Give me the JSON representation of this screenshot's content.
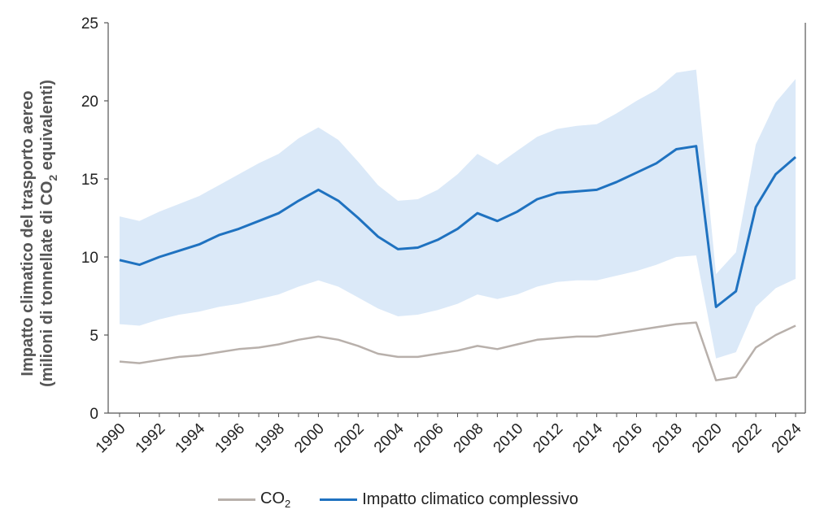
{
  "chart_data": {
    "type": "line",
    "ylabel_line1": "Impatto climatico del trasporto  aereo",
    "ylabel_line2_prefix": "(milioni di tonnellate di CO",
    "ylabel_line2_sub": "2",
    "ylabel_line2_suffix": " equivalenti)",
    "ylim": [
      0,
      25
    ],
    "yticks": [
      0,
      5,
      10,
      15,
      20,
      25
    ],
    "xlim": [
      1990,
      2024
    ],
    "xticks": [
      1990,
      1992,
      1994,
      1996,
      1998,
      2000,
      2002,
      2004,
      2006,
      2008,
      2010,
      2012,
      2014,
      2016,
      2018,
      2020,
      2022,
      2024
    ],
    "x": [
      1990,
      1991,
      1992,
      1993,
      1994,
      1995,
      1996,
      1997,
      1998,
      1999,
      2000,
      2001,
      2002,
      2003,
      2004,
      2005,
      2006,
      2007,
      2008,
      2009,
      2010,
      2011,
      2012,
      2013,
      2014,
      2015,
      2016,
      2017,
      2018,
      2019,
      2020,
      2021,
      2022,
      2023,
      2024
    ],
    "series": [
      {
        "name_main": "CO",
        "name_sub": "2",
        "color": "#b8b0ab",
        "values": [
          3.3,
          3.2,
          3.4,
          3.6,
          3.7,
          3.9,
          4.1,
          4.2,
          4.4,
          4.7,
          4.9,
          4.7,
          4.3,
          3.8,
          3.6,
          3.6,
          3.8,
          4.0,
          4.3,
          4.1,
          4.4,
          4.7,
          4.8,
          4.9,
          4.9,
          5.1,
          5.3,
          5.5,
          5.7,
          5.8,
          2.1,
          2.3,
          4.2,
          5.0,
          5.6
        ]
      },
      {
        "name_main": "Impatto climatico complessivo",
        "color": "#1f72c0",
        "values": [
          9.8,
          9.5,
          10.0,
          10.4,
          10.8,
          11.4,
          11.8,
          12.3,
          12.8,
          13.6,
          14.3,
          13.6,
          12.5,
          11.3,
          10.5,
          10.6,
          11.1,
          11.8,
          12.8,
          12.3,
          12.9,
          13.7,
          14.1,
          14.2,
          14.3,
          14.8,
          15.4,
          16.0,
          16.9,
          17.1,
          6.8,
          7.8,
          13.2,
          15.3,
          16.4
        ]
      }
    ],
    "band": {
      "color": "#dbe9f8",
      "lower": [
        5.7,
        5.6,
        6.0,
        6.3,
        6.5,
        6.8,
        7.0,
        7.3,
        7.6,
        8.1,
        8.5,
        8.1,
        7.4,
        6.7,
        6.2,
        6.3,
        6.6,
        7.0,
        7.6,
        7.3,
        7.6,
        8.1,
        8.4,
        8.5,
        8.5,
        8.8,
        9.1,
        9.5,
        10.0,
        10.1,
        3.5,
        3.9,
        6.8,
        8.0,
        8.6
      ],
      "upper": [
        12.6,
        12.3,
        12.9,
        13.4,
        13.9,
        14.6,
        15.3,
        16.0,
        16.6,
        17.6,
        18.3,
        17.5,
        16.1,
        14.6,
        13.6,
        13.7,
        14.3,
        15.3,
        16.6,
        15.9,
        16.8,
        17.7,
        18.2,
        18.4,
        18.5,
        19.2,
        20.0,
        20.7,
        21.8,
        22.0,
        8.9,
        10.3,
        17.2,
        19.9,
        21.4
      ]
    },
    "grid": false,
    "legend_position": "bottom"
  }
}
